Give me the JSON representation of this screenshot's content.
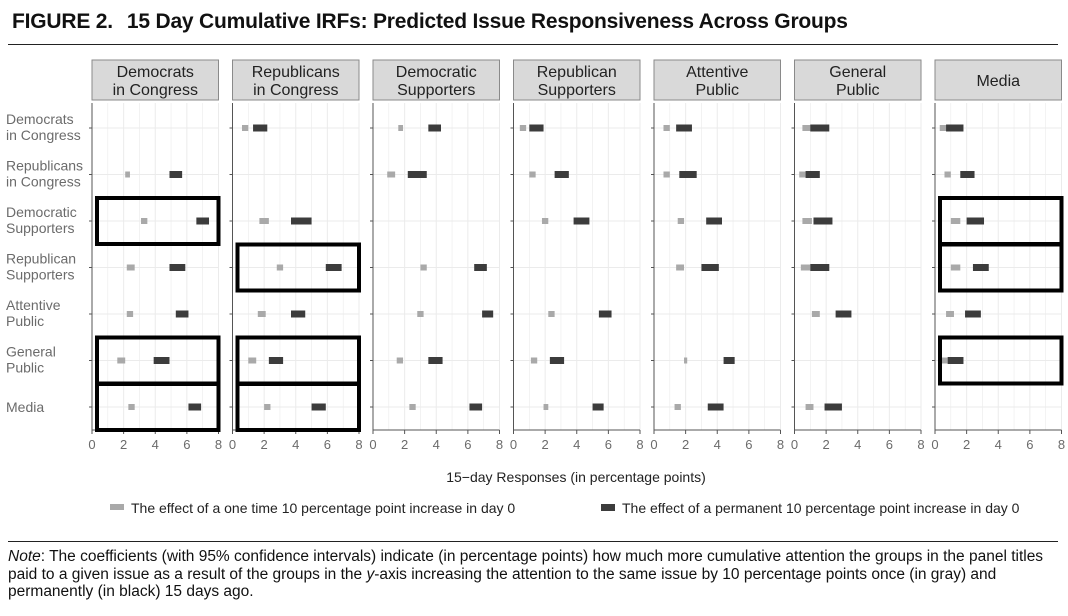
{
  "figure": {
    "label": "FIGURE 2.",
    "title": "15 Day Cumulative IRFs: Predicted Issue Responsiveness Across Groups"
  },
  "note": {
    "lead": "Note",
    "text_a": ": The coefficients (with 95% confidence intervals) indicate (in percentage points) how much more cumulative attention the groups in the panel titles paid to a given issue as a result of the groups in the ",
    "axis_word": "y",
    "text_b": "-axis increasing the attention to the same issue by 10 percentage points once (in gray) and permanently (in black) 15 days ago."
  },
  "colors": {
    "once": "#a9a9a9",
    "perm": "#3c3c3c",
    "strip_bg": "#d9d9d9",
    "grid": "#ebebeb",
    "axis_text": "#6b6b6b"
  },
  "chart_data": {
    "type": "dot-interval",
    "xlabel": "15−day Responses (in percentage points)",
    "ylabel": "",
    "xlim": [
      0,
      8
    ],
    "xticks": [
      "0",
      "2",
      "4",
      "6",
      "8"
    ],
    "grid": true,
    "legend_position": "bottom",
    "legend": [
      {
        "key": "once",
        "label": "The effect of a one time 10 percentage point increase in day 0"
      },
      {
        "key": "perm",
        "label": "The effect of a permanent 10 percentage point increase in day 0"
      }
    ],
    "panels": [
      {
        "label": [
          "Democrats",
          "in Congress"
        ]
      },
      {
        "label": [
          "Republicans",
          "in Congress"
        ]
      },
      {
        "label": [
          "Democratic",
          "Supporters"
        ]
      },
      {
        "label": [
          "Republican",
          "Supporters"
        ]
      },
      {
        "label": [
          "Attentive",
          "Public"
        ]
      },
      {
        "label": [
          "General",
          "Public"
        ]
      },
      {
        "label": [
          "Media"
        ]
      }
    ],
    "rows": [
      {
        "label": [
          "Democrats",
          "in Congress"
        ]
      },
      {
        "label": [
          "Republicans",
          "in Congress"
        ]
      },
      {
        "label": [
          "Democratic",
          "Supporters"
        ]
      },
      {
        "label": [
          "Republican",
          "Supporters"
        ]
      },
      {
        "label": [
          "Attentive",
          "Public"
        ]
      },
      {
        "label": [
          "General",
          "Public"
        ]
      },
      {
        "label": [
          "Media"
        ]
      }
    ],
    "once_intervals": [
      [
        null,
        [
          0.6,
          1.0
        ],
        [
          1.6,
          1.9
        ],
        [
          0.4,
          0.8
        ],
        [
          0.6,
          1.0
        ],
        [
          0.5,
          1.1
        ],
        [
          0.3,
          0.8
        ]
      ],
      [
        [
          2.1,
          2.4
        ],
        null,
        [
          0.9,
          1.4
        ],
        [
          1.0,
          1.4
        ],
        [
          0.6,
          1.0
        ],
        [
          0.3,
          0.7
        ],
        [
          0.6,
          1.0
        ]
      ],
      [
        [
          3.1,
          3.5
        ],
        [
          1.7,
          2.3
        ],
        null,
        [
          1.8,
          2.2
        ],
        [
          1.5,
          1.9
        ],
        [
          0.5,
          1.1
        ],
        [
          1.0,
          1.6
        ]
      ],
      [
        [
          2.2,
          2.7
        ],
        [
          2.8,
          3.2
        ],
        [
          3.0,
          3.4
        ],
        null,
        [
          1.4,
          1.9
        ],
        [
          0.4,
          1.0
        ],
        [
          1.0,
          1.6
        ]
      ],
      [
        [
          2.2,
          2.6
        ],
        [
          1.6,
          2.1
        ],
        [
          2.8,
          3.2
        ],
        [
          2.2,
          2.6
        ],
        null,
        [
          1.1,
          1.6
        ],
        [
          0.7,
          1.2
        ]
      ],
      [
        [
          1.6,
          2.1
        ],
        [
          1.0,
          1.5
        ],
        [
          1.5,
          1.9
        ],
        [
          1.1,
          1.5
        ],
        [
          1.9,
          2.1
        ],
        null,
        [
          0.3,
          0.8
        ]
      ],
      [
        [
          2.3,
          2.7
        ],
        [
          2.0,
          2.4
        ],
        [
          2.3,
          2.7
        ],
        [
          1.9,
          2.2
        ],
        [
          1.3,
          1.7
        ],
        [
          0.7,
          1.2
        ],
        null
      ]
    ],
    "perm_intervals": [
      [
        null,
        [
          1.3,
          2.2
        ],
        [
          3.5,
          4.3
        ],
        [
          1.0,
          1.9
        ],
        [
          1.4,
          2.4
        ],
        [
          1.0,
          2.2
        ],
        [
          0.7,
          1.8
        ]
      ],
      [
        [
          4.9,
          5.7
        ],
        null,
        [
          2.2,
          3.4
        ],
        [
          2.6,
          3.5
        ],
        [
          1.6,
          2.7
        ],
        [
          0.7,
          1.6
        ],
        [
          1.6,
          2.5
        ]
      ],
      [
        [
          6.6,
          7.4
        ],
        [
          3.7,
          5.0
        ],
        null,
        [
          3.8,
          4.8
        ],
        [
          3.3,
          4.3
        ],
        [
          1.2,
          2.4
        ],
        [
          2.0,
          3.1
        ]
      ],
      [
        [
          4.9,
          5.9
        ],
        [
          5.9,
          6.9
        ],
        [
          6.4,
          7.2
        ],
        null,
        [
          3.0,
          4.1
        ],
        [
          1.0,
          2.2
        ],
        [
          2.4,
          3.4
        ]
      ],
      [
        [
          5.3,
          6.1
        ],
        [
          3.7,
          4.6
        ],
        [
          6.9,
          7.6
        ],
        [
          5.4,
          6.2
        ],
        null,
        [
          2.6,
          3.6
        ],
        [
          1.9,
          2.9
        ]
      ],
      [
        [
          3.9,
          4.9
        ],
        [
          2.3,
          3.2
        ],
        [
          3.5,
          4.4
        ],
        [
          2.3,
          3.2
        ],
        [
          4.4,
          5.1
        ],
        null,
        [
          0.8,
          1.8
        ]
      ],
      [
        [
          6.1,
          6.9
        ],
        [
          5.0,
          5.9
        ],
        [
          6.1,
          6.9
        ],
        [
          5.0,
          5.7
        ],
        [
          3.4,
          4.4
        ],
        [
          1.9,
          3.0
        ],
        null
      ]
    ],
    "highlighted_cells": [
      {
        "panel": 0,
        "row": 2
      },
      {
        "panel": 0,
        "row": 5
      },
      {
        "panel": 0,
        "row": 6
      },
      {
        "panel": 1,
        "row": 3
      },
      {
        "panel": 1,
        "row": 5
      },
      {
        "panel": 1,
        "row": 6
      },
      {
        "panel": 6,
        "row": 2
      },
      {
        "panel": 6,
        "row": 3
      },
      {
        "panel": 6,
        "row": 5
      }
    ]
  }
}
